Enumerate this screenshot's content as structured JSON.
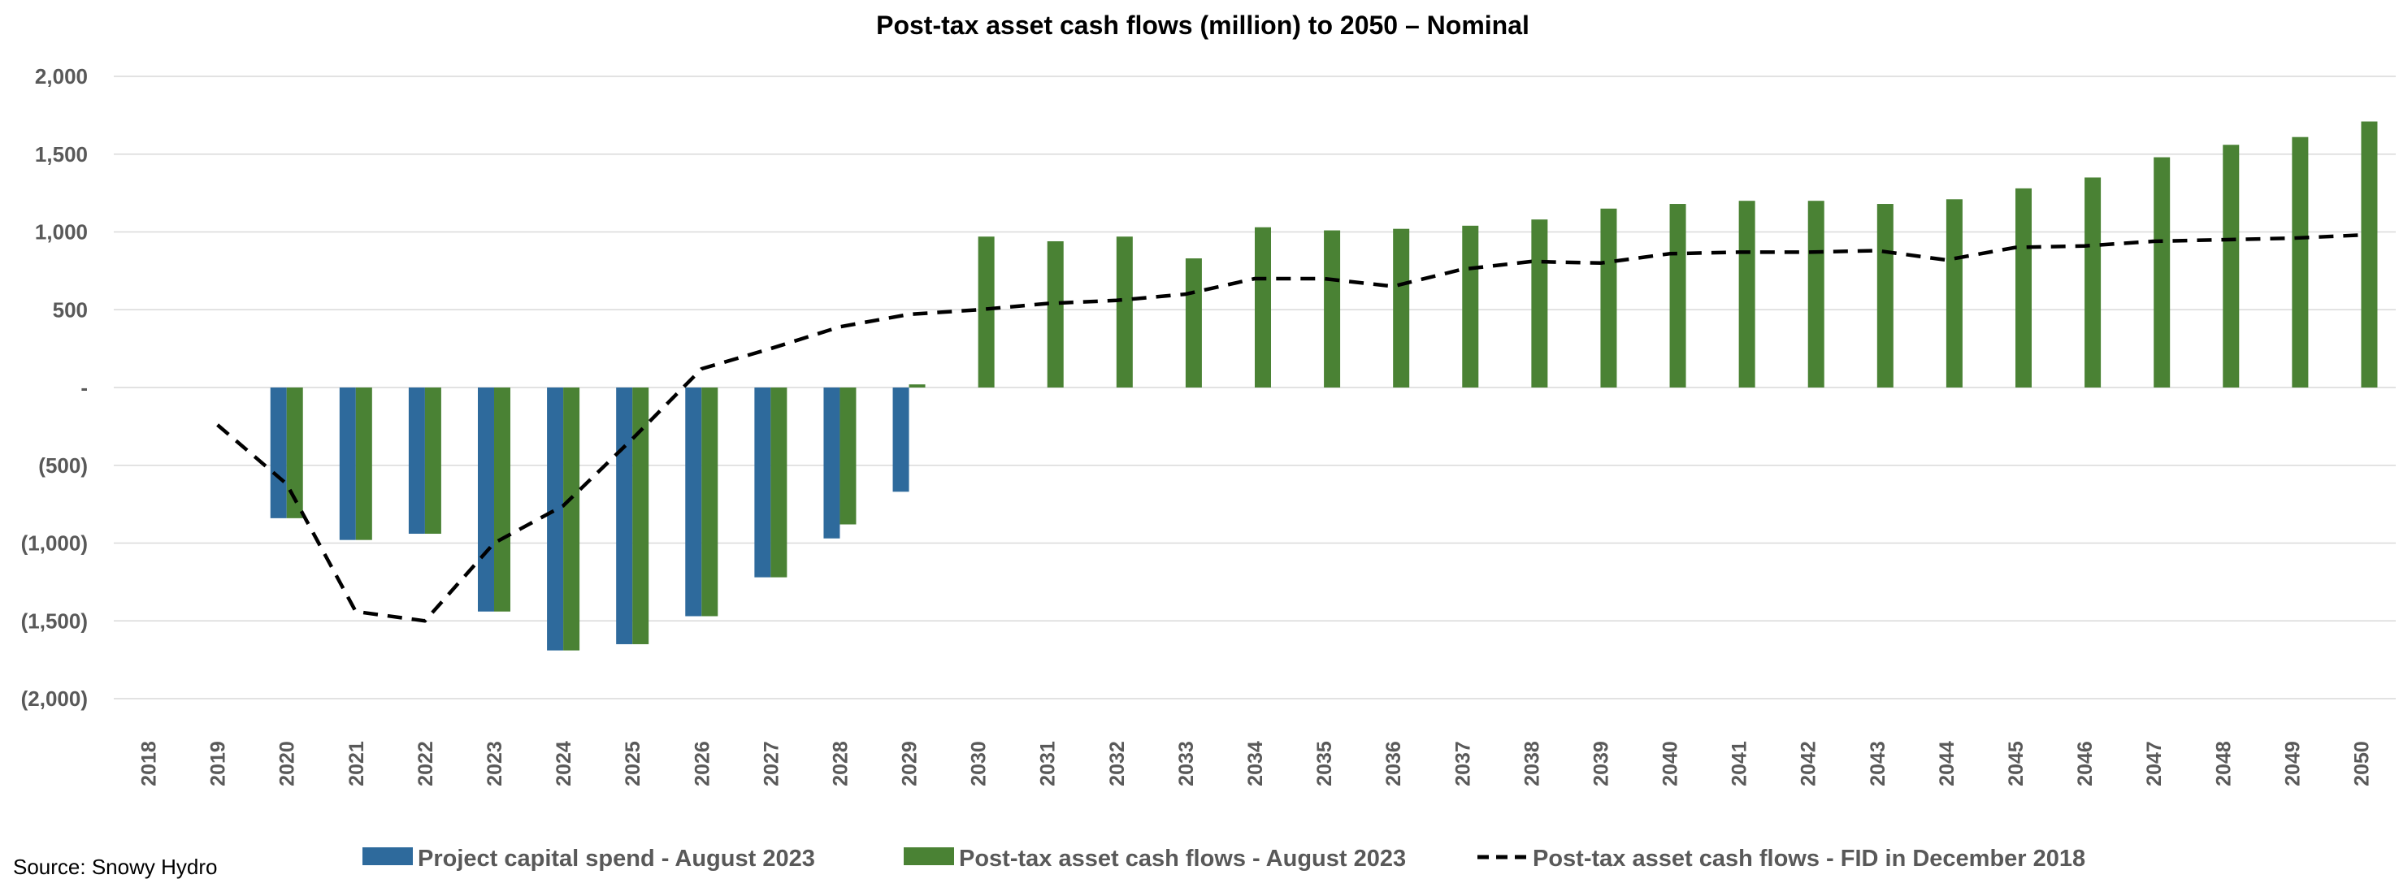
{
  "chart_data": {
    "type": "bar",
    "title": "Post-tax asset cash flows (million) to 2050 – Nominal",
    "xlabel": "",
    "ylabel": "",
    "ylim": [
      -2000,
      2000
    ],
    "yticks": [
      2000,
      1500,
      1000,
      500,
      0,
      -500,
      -1000,
      -1500,
      -2000
    ],
    "ytick_labels": [
      "2,000",
      "1,500",
      "1,000",
      "500",
      "-",
      "(500)",
      "(1,000)",
      "(1,500)",
      "(2,000)"
    ],
    "grid": true,
    "legend_position": "bottom",
    "categories": [
      "2018",
      "2019",
      "2020",
      "2021",
      "2022",
      "2023",
      "2024",
      "2025",
      "2026",
      "2027",
      "2028",
      "2029",
      "2030",
      "2031",
      "2032",
      "2033",
      "2034",
      "2035",
      "2036",
      "2037",
      "2038",
      "2039",
      "2040",
      "2041",
      "2042",
      "2043",
      "2044",
      "2045",
      "2046",
      "2047",
      "2048",
      "2049",
      "2050"
    ],
    "series": [
      {
        "name": "Project capital spend - August 2023",
        "kind": "bar",
        "color": "#2e6a9c",
        "values": [
          null,
          null,
          -840,
          -980,
          -940,
          -1440,
          -1690,
          -1650,
          -1470,
          -1220,
          -970,
          -670,
          null,
          null,
          null,
          null,
          null,
          null,
          null,
          null,
          null,
          null,
          null,
          null,
          null,
          null,
          null,
          null,
          null,
          null,
          null,
          null,
          null
        ]
      },
      {
        "name": "Post-tax asset cash flows - August 2023",
        "kind": "bar",
        "color": "#4a8234",
        "values": [
          null,
          null,
          -840,
          -980,
          -940,
          -1440,
          -1690,
          -1650,
          -1470,
          -1220,
          -880,
          20,
          970,
          940,
          970,
          830,
          1030,
          1010,
          1020,
          1040,
          1080,
          1150,
          1180,
          1200,
          1200,
          1180,
          1210,
          1280,
          1350,
          1480,
          1560,
          1610,
          1710
        ]
      },
      {
        "name": "Post-tax asset cash flows - FID in December 2018",
        "kind": "line",
        "style": "dashed",
        "color": "#000000",
        "values": [
          null,
          -240,
          -620,
          -1440,
          -1500,
          -1000,
          -760,
          -330,
          120,
          250,
          390,
          470,
          500,
          540,
          560,
          600,
          700,
          700,
          650,
          760,
          810,
          800,
          860,
          870,
          870,
          880,
          820,
          900,
          910,
          940,
          950,
          960,
          980
        ]
      }
    ],
    "source": "Source: Snowy Hydro"
  }
}
